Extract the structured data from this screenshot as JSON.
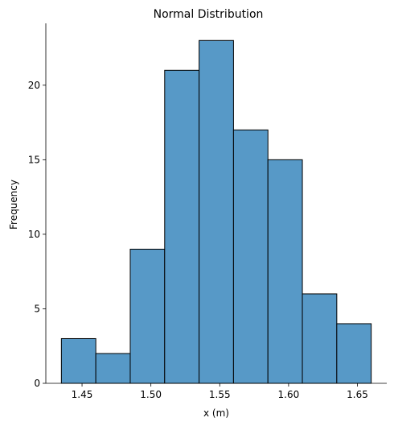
{
  "chart_data": {
    "type": "bar",
    "title": "Normal Distribution",
    "xlabel": "x (m)",
    "ylabel": "Frequency",
    "bins": [
      {
        "start": 1.435,
        "end": 1.46,
        "count": 3
      },
      {
        "start": 1.46,
        "end": 1.485,
        "count": 2
      },
      {
        "start": 1.485,
        "end": 1.51,
        "count": 9
      },
      {
        "start": 1.51,
        "end": 1.535,
        "count": 21
      },
      {
        "start": 1.535,
        "end": 1.56,
        "count": 23
      },
      {
        "start": 1.56,
        "end": 1.585,
        "count": 17
      },
      {
        "start": 1.585,
        "end": 1.61,
        "count": 15
      },
      {
        "start": 1.61,
        "end": 1.635,
        "count": 6
      },
      {
        "start": 1.635,
        "end": 1.66,
        "count": 4
      }
    ],
    "xlim": [
      1.4237,
      1.6713
    ],
    "ylim": [
      0,
      24.15
    ],
    "xticks": [
      1.45,
      1.5,
      1.55,
      1.6,
      1.65
    ],
    "xtick_labels": [
      "1.45",
      "1.50",
      "1.55",
      "1.60",
      "1.65"
    ],
    "yticks": [
      0,
      5,
      10,
      15,
      20
    ],
    "ytick_labels": [
      "0",
      "5",
      "10",
      "15",
      "20"
    ],
    "bar_color": "#5799c7",
    "edge_color": "#000000",
    "grid": false
  }
}
